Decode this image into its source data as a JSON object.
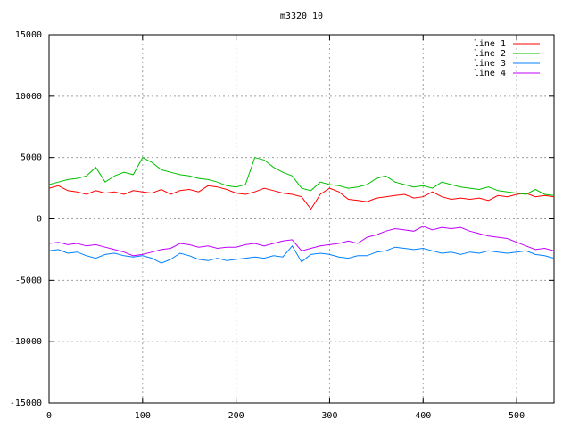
{
  "chart_data": {
    "type": "line",
    "title": "m3320_10",
    "x": [
      0,
      10,
      20,
      30,
      40,
      50,
      60,
      70,
      80,
      90,
      100,
      110,
      120,
      130,
      140,
      150,
      160,
      170,
      180,
      190,
      200,
      210,
      220,
      230,
      240,
      250,
      260,
      270,
      280,
      290,
      300,
      310,
      320,
      330,
      340,
      350,
      360,
      370,
      380,
      390,
      400,
      410,
      420,
      430,
      440,
      450,
      460,
      470,
      480,
      490,
      500,
      510,
      520,
      530,
      540
    ],
    "series": [
      {
        "name": "line 1",
        "color": "#ff0000",
        "values": [
          2500,
          2700,
          2300,
          2200,
          2000,
          2300,
          2100,
          2200,
          2000,
          2300,
          2200,
          2100,
          2400,
          2000,
          2300,
          2400,
          2200,
          2700,
          2600,
          2400,
          2100,
          2000,
          2200,
          2500,
          2300,
          2100,
          2000,
          1800,
          800,
          2000,
          2500,
          2200,
          1600,
          1500,
          1400,
          1700,
          1800,
          1900,
          2000,
          1700,
          1800,
          2200,
          1800,
          1600,
          1700,
          1600,
          1700,
          1500,
          1900,
          1800,
          2000,
          2100,
          1800,
          1900,
          1800
        ]
      },
      {
        "name": "line 2",
        "color": "#00c000",
        "values": [
          2800,
          3000,
          3200,
          3300,
          3500,
          4200,
          3000,
          3500,
          3800,
          3600,
          5000,
          4600,
          4000,
          3800,
          3600,
          3500,
          3300,
          3200,
          3000,
          2700,
          2600,
          2800,
          5000,
          4800,
          4200,
          3800,
          3500,
          2500,
          2300,
          3000,
          2800,
          2700,
          2500,
          2600,
          2800,
          3300,
          3500,
          3000,
          2800,
          2600,
          2700,
          2500,
          3000,
          2800,
          2600,
          2500,
          2400,
          2600,
          2300,
          2200,
          2100,
          2000,
          2400,
          2000,
          1900
        ]
      },
      {
        "name": "line 3",
        "color": "#0080ff",
        "values": [
          -2600,
          -2500,
          -2800,
          -2700,
          -3000,
          -3200,
          -2900,
          -2800,
          -3000,
          -3100,
          -3000,
          -3200,
          -3600,
          -3300,
          -2800,
          -3000,
          -3300,
          -3400,
          -3200,
          -3400,
          -3300,
          -3200,
          -3100,
          -3200,
          -3000,
          -3100,
          -2200,
          -3500,
          -2900,
          -2800,
          -2900,
          -3100,
          -3200,
          -3000,
          -3000,
          -2700,
          -2600,
          -2300,
          -2400,
          -2500,
          -2400,
          -2600,
          -2800,
          -2700,
          -2900,
          -2700,
          -2800,
          -2600,
          -2700,
          -2800,
          -2700,
          -2600,
          -2900,
          -3000,
          -3200
        ]
      },
      {
        "name": "line 4",
        "color": "#c000ff",
        "values": [
          -2000,
          -1900,
          -2100,
          -2000,
          -2200,
          -2100,
          -2300,
          -2500,
          -2700,
          -3000,
          -2900,
          -2700,
          -2500,
          -2400,
          -2000,
          -2100,
          -2300,
          -2200,
          -2400,
          -2300,
          -2300,
          -2100,
          -2000,
          -2200,
          -2000,
          -1800,
          -1700,
          -2600,
          -2400,
          -2200,
          -2100,
          -2000,
          -1800,
          -2000,
          -1500,
          -1300,
          -1000,
          -800,
          -900,
          -1000,
          -600,
          -900,
          -700,
          -800,
          -700,
          -1000,
          -1200,
          -1400,
          -1500,
          -1600,
          -1900,
          -2200,
          -2500,
          -2400,
          -2600
        ]
      }
    ],
    "xlim": [
      0,
      540
    ],
    "xticks": [
      0,
      100,
      200,
      300,
      400,
      500
    ],
    "ylim": [
      -15000,
      15000
    ],
    "yticks": [
      -15000,
      -10000,
      -5000,
      0,
      5000,
      10000,
      15000
    ],
    "grid": true,
    "legend": "top-right"
  }
}
